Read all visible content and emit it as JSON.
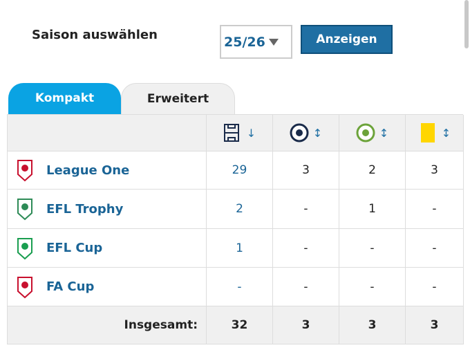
{
  "season": {
    "label": "Saison auswählen",
    "value": "25/26",
    "button": "Anzeigen"
  },
  "tabs": [
    "Kompakt",
    "Erweitert"
  ],
  "table": {
    "rows": [
      {
        "name": "League One",
        "values": [
          29,
          3,
          2,
          3
        ]
      },
      {
        "name": "EFL Trophy",
        "values": [
          2,
          "-",
          1,
          "-"
        ]
      },
      {
        "name": "EFL Cup",
        "values": [
          1,
          "-",
          "-",
          "-"
        ]
      },
      {
        "name": "FA Cup",
        "values": [
          "-",
          "-",
          "-",
          "-"
        ]
      }
    ],
    "total": {
      "label": "Insgesamt:",
      "values": [
        32,
        3,
        3,
        3
      ]
    }
  }
}
